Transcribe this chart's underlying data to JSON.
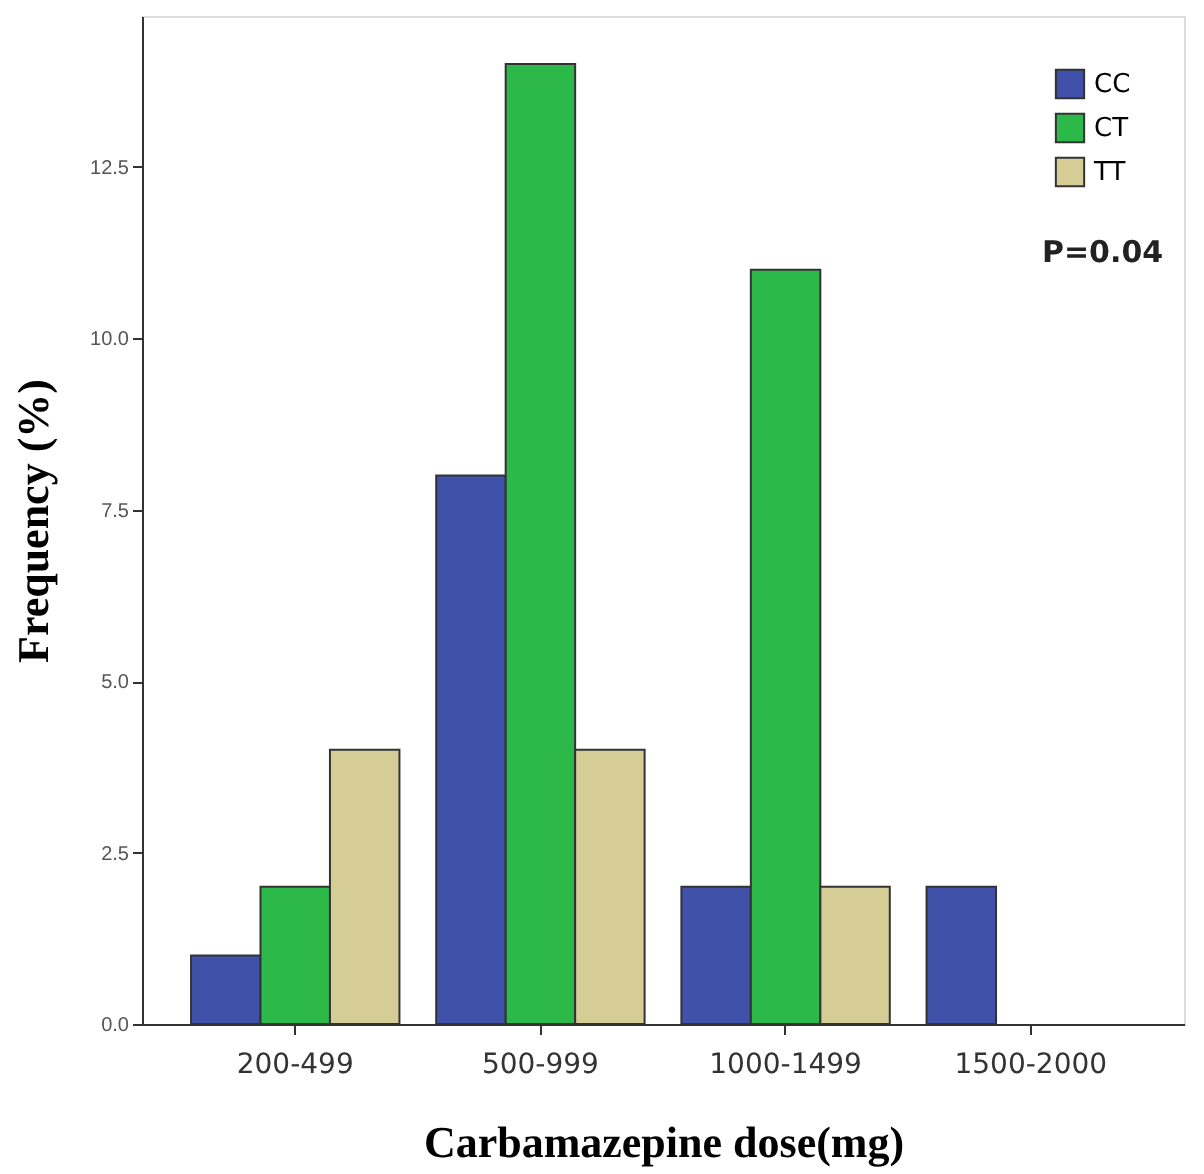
{
  "chart_data": {
    "type": "bar",
    "xlabel": "Carbamazepine dose(mg)",
    "ylabel": "Frequency (%)",
    "categories": [
      "200-499",
      "500-999",
      "1000-1499",
      "1500-2000"
    ],
    "series": [
      {
        "name": "CC",
        "color": "#3f51a8",
        "values": [
          1,
          8,
          2,
          2
        ]
      },
      {
        "name": "CT",
        "color": "#2db84a",
        "values": [
          2,
          14,
          11,
          null
        ]
      },
      {
        "name": "TT",
        "color": "#d6cc96",
        "values": [
          4,
          4,
          2,
          null
        ]
      }
    ],
    "ylim": [
      0,
      14.7
    ],
    "yticks": [
      {
        "value": 0,
        "label": "0.0"
      },
      {
        "value": 2.5,
        "label": "2.5"
      },
      {
        "value": 5,
        "label": "5.0"
      },
      {
        "value": 7.5,
        "label": "7.5"
      },
      {
        "value": 10,
        "label": "10.0"
      },
      {
        "value": 12.5,
        "label": "12.5"
      }
    ],
    "annotations": [
      "P=0.04"
    ],
    "legend": "top right",
    "grid": false
  }
}
